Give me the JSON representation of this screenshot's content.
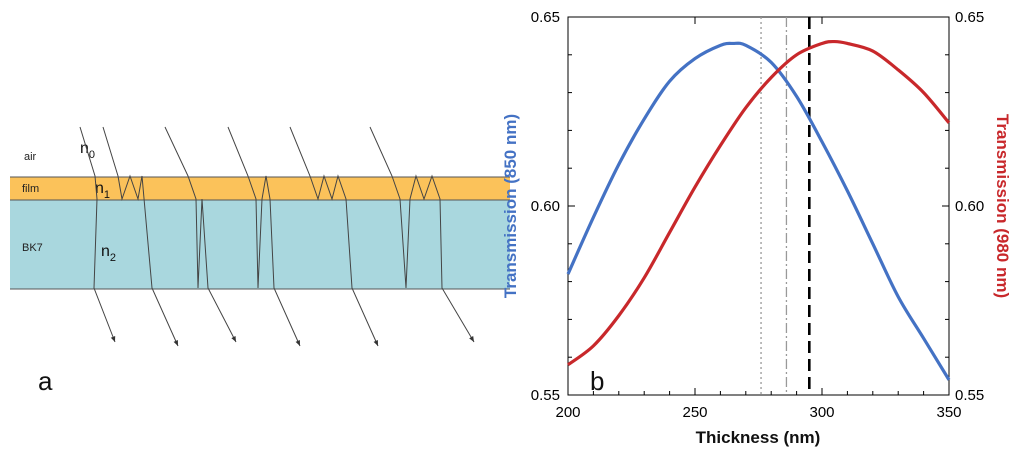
{
  "panel_a": {
    "label": "a",
    "layers": [
      {
        "name": "air",
        "index_symbol": "n",
        "index_sub": "0",
        "color": "#ffffff"
      },
      {
        "name": "film",
        "index_symbol": "n",
        "index_sub": "1",
        "color": "#fbc25a"
      },
      {
        "name": "BK7",
        "index_symbol": "n",
        "index_sub": "2",
        "color": "#a9d7de"
      }
    ]
  },
  "chart_data": {
    "type": "line",
    "panel_label": "b",
    "xlabel": "Thickness (nm)",
    "ylabel_left": "Transmission (850 nm)",
    "ylabel_right": "Transmission (980 nm)",
    "xlim": [
      200,
      350
    ],
    "ylim_left": [
      0.55,
      0.65
    ],
    "ylim_right": [
      0.55,
      0.65
    ],
    "x_ticks": [
      200,
      250,
      300,
      350
    ],
    "y_ticks_left": [
      "0.55",
      "0.60",
      "0.65"
    ],
    "y_ticks_right": [
      "0.55",
      "0.60",
      "0.65"
    ],
    "grid": false,
    "series": [
      {
        "axis": "left",
        "color": "#4472c4",
        "x": [
          200,
          210,
          220,
          230,
          240,
          250,
          260,
          265,
          270,
          280,
          290,
          300,
          310,
          320,
          330,
          340,
          350
        ],
        "y": [
          0.582,
          0.597,
          0.611,
          0.623,
          0.633,
          0.639,
          0.6425,
          0.643,
          0.6425,
          0.638,
          0.629,
          0.617,
          0.604,
          0.59,
          0.576,
          0.565,
          0.554
        ]
      },
      {
        "axis": "right",
        "color": "#c8282b",
        "x": [
          200,
          210,
          220,
          230,
          240,
          250,
          260,
          270,
          280,
          290,
          300,
          305,
          310,
          320,
          330,
          340,
          350
        ],
        "y": [
          0.558,
          0.563,
          0.571,
          0.581,
          0.593,
          0.605,
          0.616,
          0.626,
          0.634,
          0.64,
          0.643,
          0.6435,
          0.643,
          0.641,
          0.636,
          0.63,
          0.622
        ]
      }
    ],
    "vertical_lines": [
      {
        "x": 276,
        "style": "dotted",
        "color": "#999999"
      },
      {
        "x": 286,
        "style": "dashdot",
        "color": "#999999"
      },
      {
        "x": 295,
        "style": "dashed",
        "color": "#000000"
      }
    ]
  }
}
